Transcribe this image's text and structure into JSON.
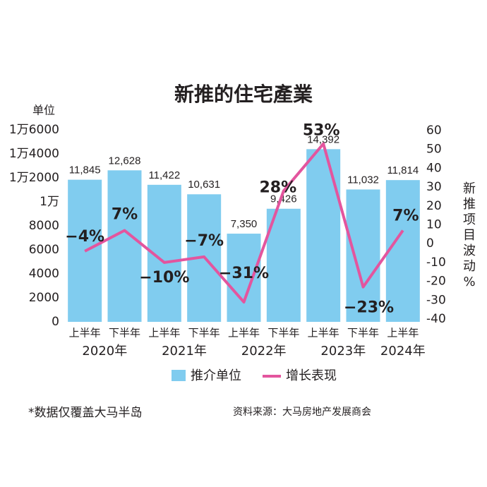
{
  "chart_data": {
    "type": "bar-line",
    "title": "新推的住宅產業",
    "y_axis_label": "单位",
    "y2_axis_label": "新推项目波动%",
    "categories": [
      "上半年",
      "下半年",
      "上半年",
      "下半年",
      "上半年",
      "下半年",
      "上半年",
      "下半年",
      "上半年"
    ],
    "year_labels": [
      "2020年",
      "2021年",
      "2022年",
      "2023年",
      "2024年"
    ],
    "series": [
      {
        "name": "推介单位",
        "color": "#80ccef",
        "type": "bar",
        "values": [
          11845,
          12628,
          11422,
          10631,
          7350,
          9426,
          14392,
          11032,
          11814
        ],
        "value_labels": [
          "11,845",
          "12,628",
          "11,422",
          "10,631",
          "7,350",
          "9,426",
          "14,392",
          "11,032",
          "11,814"
        ]
      },
      {
        "name": "增长表现",
        "color": "#e3559e",
        "type": "line",
        "axis": "y2",
        "values": [
          -4,
          7,
          -10,
          -7,
          -31,
          28,
          53,
          -23,
          7
        ],
        "value_labels": [
          "−4%",
          "7%",
          "−10%",
          "−7%",
          "−31%",
          "28%",
          "53%",
          "−23%",
          "7%"
        ]
      }
    ],
    "ylim": [
      0,
      16000
    ],
    "yticks": [
      0,
      2000,
      4000,
      6000,
      8000,
      {
        "value": 10000,
        "label": "1万"
      },
      {
        "value": 12000,
        "label": "1万2000"
      },
      {
        "value": 14000,
        "label": "1万4000"
      },
      {
        "value": 16000,
        "label": "1万6000"
      }
    ],
    "y2lim": [
      -40,
      60
    ],
    "y2ticks": [
      -40,
      -30,
      -20,
      -10,
      0,
      10,
      20,
      30,
      40,
      50,
      60
    ],
    "footnote": "*数据仅覆盖大马半岛",
    "source": "资料来源：大马房地产发展商会"
  }
}
